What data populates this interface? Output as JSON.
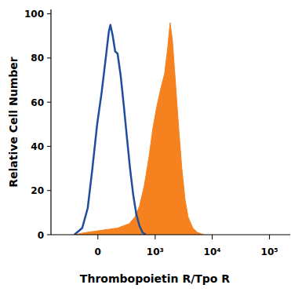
{
  "chart_data": {
    "type": "line",
    "x_label": "Thrombopoietin R/Tpo R",
    "y_label": "Relative Cell Number",
    "xlim": [
      -650,
      230000
    ],
    "xticks": [
      0,
      {
        "value": 1000,
        "label": "10³"
      },
      {
        "value": 10000,
        "label": "10⁴"
      },
      {
        "value": 100000,
        "label": "10⁵"
      }
    ],
    "ylim": [
      0,
      102
    ],
    "yticks": [
      0,
      20,
      40,
      60,
      80,
      100
    ],
    "grid": false,
    "series": [
      {
        "type": "line",
        "color": "#1f4e9c",
        "x": [
          -221,
          -136,
          -85,
          -45,
          -6,
          32,
          65,
          92,
          106,
          128,
          152,
          177,
          212,
          252,
          293,
          340,
          394,
          454,
          519,
          592,
          677
        ],
        "values": [
          0,
          3,
          12,
          30,
          50,
          65,
          80,
          92,
          95,
          90,
          83,
          82,
          72,
          58,
          44,
          30,
          18,
          9,
          4,
          1,
          0
        ]
      },
      {
        "type": "area",
        "color": "#f5821f",
        "x": [
          -221,
          -99,
          32,
          177,
          328,
          423,
          519,
          634,
          772,
          907,
          1067,
          1252,
          1469,
          1669,
          1834,
          2018,
          2291,
          2600,
          2949,
          3349,
          3798,
          4585,
          5535,
          7131
        ],
        "values": [
          0,
          1,
          2,
          3,
          5,
          8,
          13,
          22,
          35,
          48,
          58,
          66,
          73,
          85,
          96,
          88,
          68,
          48,
          30,
          16,
          8,
          3,
          1,
          0
        ]
      }
    ]
  }
}
